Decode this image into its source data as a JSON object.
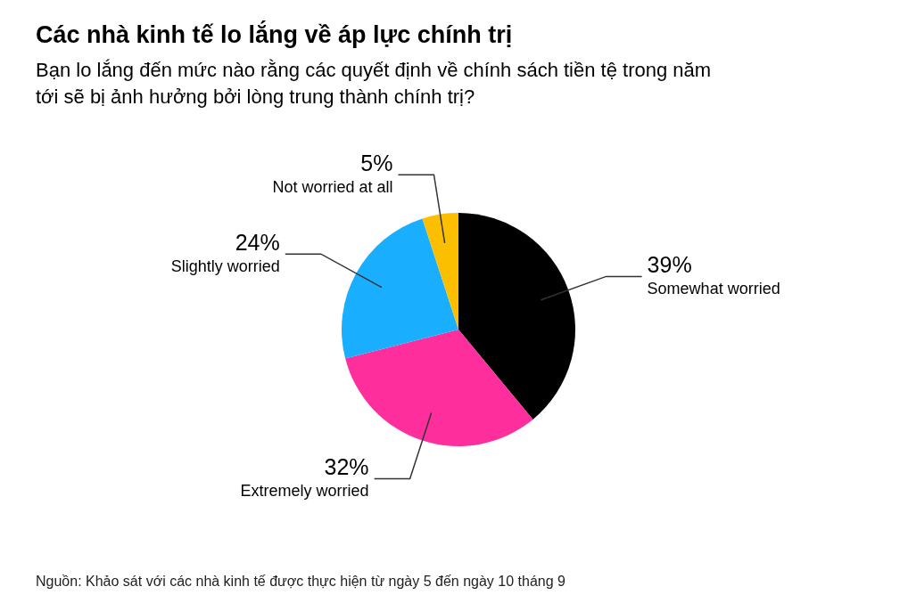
{
  "chart_data": {
    "type": "pie",
    "title": "Các nhà kinh tế lo lắng về áp lực chính trị",
    "subtitle": "Bạn lo lắng đến mức nào rằng các quyết định về chính sách tiền tệ trong năm tới sẽ bị ảnh hưởng bởi lòng trung thành chính trị?",
    "categories": [
      "Somewhat worried",
      "Extremely worried",
      "Slightly worried",
      "Not worried at all"
    ],
    "values": [
      39,
      32,
      24,
      5
    ],
    "value_labels": [
      "39%",
      "32%",
      "24%",
      "5%"
    ],
    "colors": [
      "#000000",
      "#ff2e9d",
      "#1aaeff",
      "#fcbf00"
    ],
    "annotations": [
      "Nguồn: Khảo sát với các nhà kinh tế được thực hiện từ ngày 5 đến ngày 10 tháng 9"
    ]
  }
}
